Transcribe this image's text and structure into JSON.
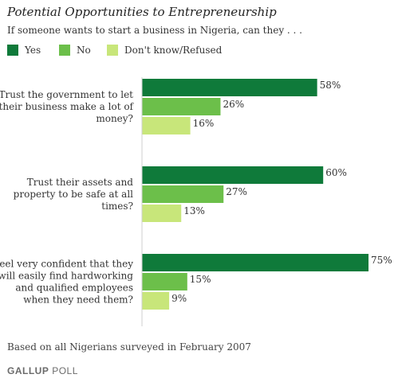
{
  "title": "Potential Opportunities to Entrepreneurship",
  "subtitle": "If someone wants to start a business in Nigeria, can they . . .",
  "legend": [
    {
      "label": "Yes",
      "color": "#0f7a3a"
    },
    {
      "label": "No",
      "color": "#6cbf4a"
    },
    {
      "label": "Don't know/Refused",
      "color": "#c8e67a"
    }
  ],
  "chart_data": {
    "type": "bar",
    "orientation": "horizontal",
    "categories": [
      [
        "Trust the government to let",
        "their business make a lot of",
        "money?"
      ],
      [
        "Trust their assets and",
        "property to be safe at all",
        "times?"
      ],
      [
        "Feel very confident that they",
        "will easily find hardworking",
        "and qualified employees",
        "when they need them?"
      ]
    ],
    "series": [
      {
        "name": "Yes",
        "values": [
          58,
          60,
          75
        ],
        "color": "#0f7a3a"
      },
      {
        "name": "No",
        "values": [
          26,
          27,
          15
        ],
        "color": "#6cbf4a"
      },
      {
        "name": "Don't know/Refused",
        "values": [
          16,
          13,
          9
        ],
        "color": "#c8e67a"
      }
    ],
    "value_suffix": "%",
    "xlim": [
      0,
      75
    ],
    "grid": false,
    "legend_position": "top-left"
  },
  "footnote": "Based on all Nigerians surveyed in February 2007",
  "logo": {
    "brand": "GALLUP",
    "product": "POLL"
  }
}
